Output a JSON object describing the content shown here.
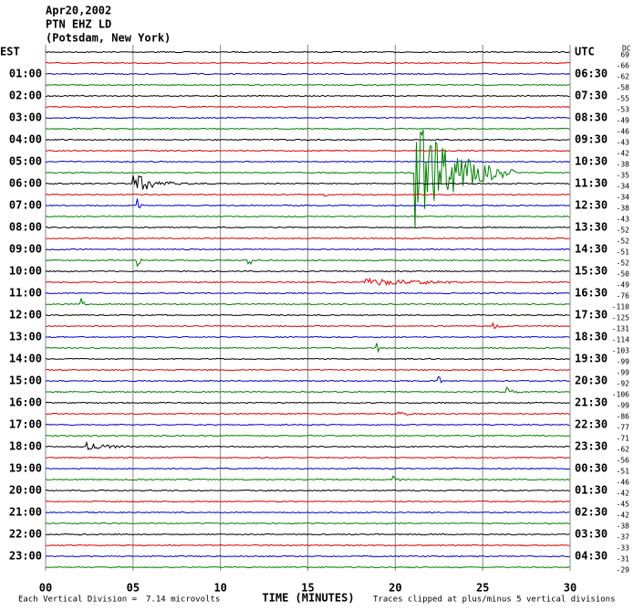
{
  "chart_data": {
    "type": "helicorder",
    "header": [
      "Apr20,2002",
      "PTN EHZ LD",
      "(Potsdam, New York)"
    ],
    "est_labels": [
      "EST",
      "01:00",
      "02:00",
      "03:00",
      "04:00",
      "05:00",
      "06:00",
      "07:00",
      "08:00",
      "09:00",
      "10:00",
      "11:00",
      "12:00",
      "13:00",
      "14:00",
      "15:00",
      "16:00",
      "17:00",
      "18:00",
      "19:00",
      "20:00",
      "21:00",
      "22:00",
      "23:00"
    ],
    "utc_labels": [
      "UTC",
      "06:30",
      "07:30",
      "08:30",
      "09:30",
      "10:30",
      "11:30",
      "12:30",
      "13:30",
      "14:30",
      "15:30",
      "16:30",
      "17:30",
      "18:30",
      "19:30",
      "20:30",
      "21:30",
      "22:30",
      "23:30",
      "00:30",
      "01:30",
      "02:30",
      "03:30",
      "04:30"
    ],
    "dc_label": "DC",
    "dc_offsets": [
      69,
      -66,
      -62,
      -58,
      -55,
      -53,
      -49,
      -46,
      -43,
      -42,
      -38,
      -35,
      -34,
      -34,
      -38,
      -43,
      -52,
      -52,
      -51,
      -52,
      -50,
      -49,
      -76,
      -110,
      -125,
      -131,
      -114,
      -103,
      -99,
      -99,
      -92,
      -106,
      -99,
      -86,
      -77,
      -71,
      -62,
      -56,
      -51,
      -46,
      -42,
      -45,
      -42,
      -38,
      -37,
      -33,
      -31,
      -29
    ],
    "trace_colors": [
      "#000000",
      "#e00000",
      "#0000cc",
      "#008000"
    ],
    "xlim": [
      0,
      30
    ],
    "xticks": [
      {
        "value": 0,
        "label": "00"
      },
      {
        "value": 5,
        "label": "05"
      },
      {
        "value": 10,
        "label": "10"
      },
      {
        "value": 15,
        "label": "15"
      },
      {
        "value": 20,
        "label": "20"
      },
      {
        "value": 25,
        "label": "25"
      },
      {
        "value": 30,
        "label": "30"
      }
    ],
    "xlabel": "TIME (MINUTES)",
    "division_label": "Each Vertical Division =",
    "division_value": "7.14 microvolts",
    "clip_note": "Traces clipped at plus/minus 5 vertical divisions"
  }
}
